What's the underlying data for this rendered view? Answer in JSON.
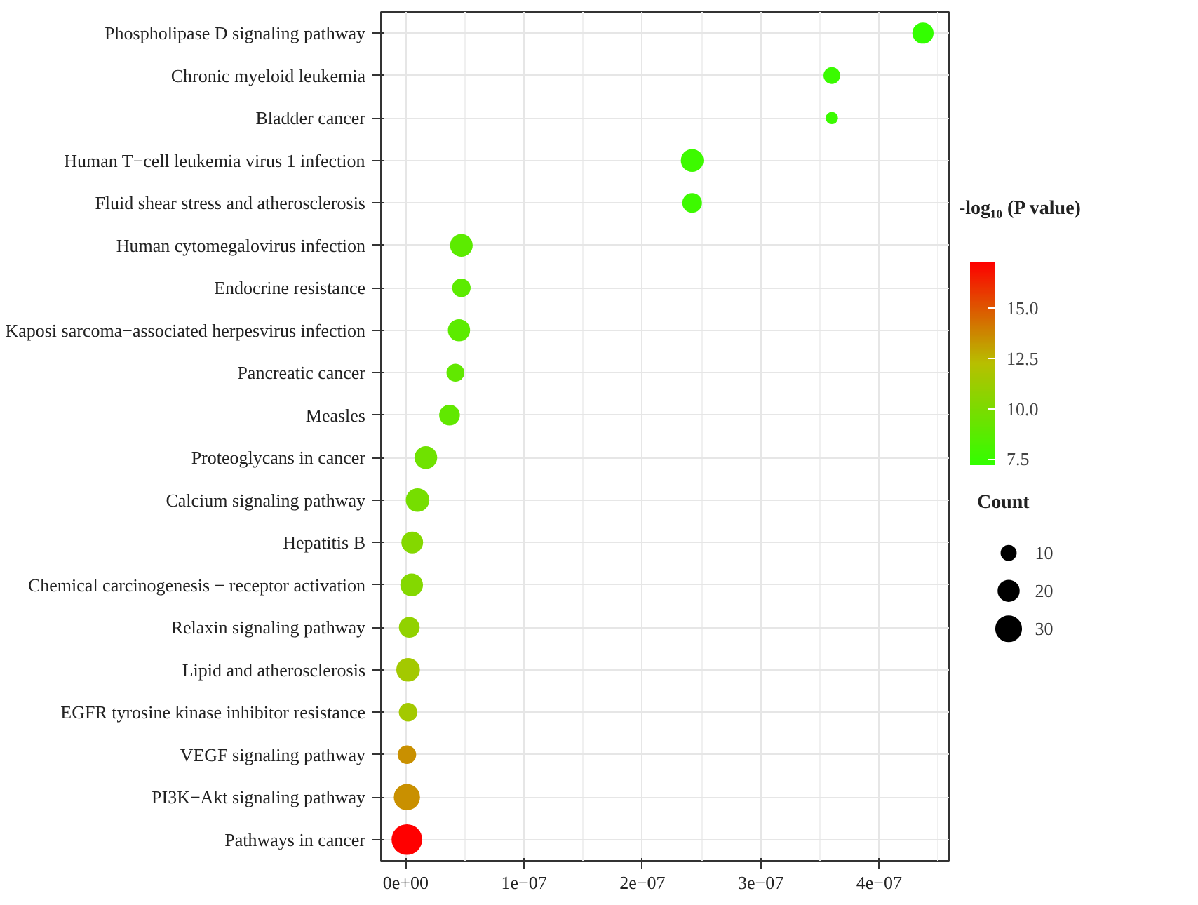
{
  "chart_data": {
    "type": "bubble",
    "categories": [
      "Phospholipase D signaling pathway",
      "Chronic myeloid leukemia",
      "Bladder cancer",
      "Human T−cell leukemia virus 1 infection",
      "Fluid shear stress and atherosclerosis",
      "Human cytomegalovirus infection",
      "Endocrine resistance",
      "Kaposi sarcoma−associated herpesvirus infection",
      "Pancreatic cancer",
      "Measles",
      "Proteoglycans in cancer",
      "Calcium signaling pathway",
      "Hepatitis B",
      "Chemical carcinogenesis − receptor activation",
      "Relaxin signaling pathway",
      "Lipid and atherosclerosis",
      "EGFR tyrosine kinase inhibitor resistance",
      "VEGF signaling pathway",
      "PI3K−Akt signaling pathway",
      "Pathways in cancer"
    ],
    "values": [
      4.37e-07,
      3.6e-07,
      3.6e-07,
      2.42e-07,
      2.42e-07,
      4.7e-08,
      4.7e-08,
      4.5e-08,
      4.2e-08,
      3.7e-08,
      1.7e-08,
      1e-08,
      5.5e-09,
      5e-09,
      3e-09,
      2e-09,
      2e-09,
      1e-09,
      1e-09,
      1e-09
    ],
    "sizes": [
      21,
      13,
      7,
      24,
      18,
      24,
      16,
      23,
      15,
      20,
      24,
      26,
      22,
      24,
      20,
      26,
      16,
      16,
      32,
      44
    ],
    "size_legend": [
      10,
      20,
      30
    ],
    "cvalues": [
      7.2,
      7.5,
      7.5,
      7.6,
      7.6,
      8.8,
      8.8,
      8.8,
      9.0,
      9.0,
      9.5,
      9.8,
      10.3,
      10.3,
      10.8,
      11.5,
      11.5,
      13.5,
      13.5,
      17.3
    ],
    "clabel": "-log₁₀ (P value)",
    "clim": [
      7.2,
      17.3
    ],
    "cticks": [
      {
        "value": 7.5,
        "label": "7.5"
      },
      {
        "value": 10,
        "label": "10.0"
      },
      {
        "value": 12.5,
        "label": "12.5"
      },
      {
        "value": 15,
        "label": "15.0"
      }
    ],
    "legend_title": "Count",
    "xlim": [
      -2.1e-08,
      4.59e-07
    ],
    "xticks": [
      {
        "value": 0,
        "label": "0e+00"
      },
      {
        "value": 1e-07,
        "label": "1e−07"
      },
      {
        "value": 2e-07,
        "label": "2e−07"
      },
      {
        "value": 3e-07,
        "label": "3e−07"
      },
      {
        "value": 4e-07,
        "label": "4e−07"
      }
    ],
    "grid": true,
    "marker": "circle",
    "orientation": "horizontal"
  }
}
